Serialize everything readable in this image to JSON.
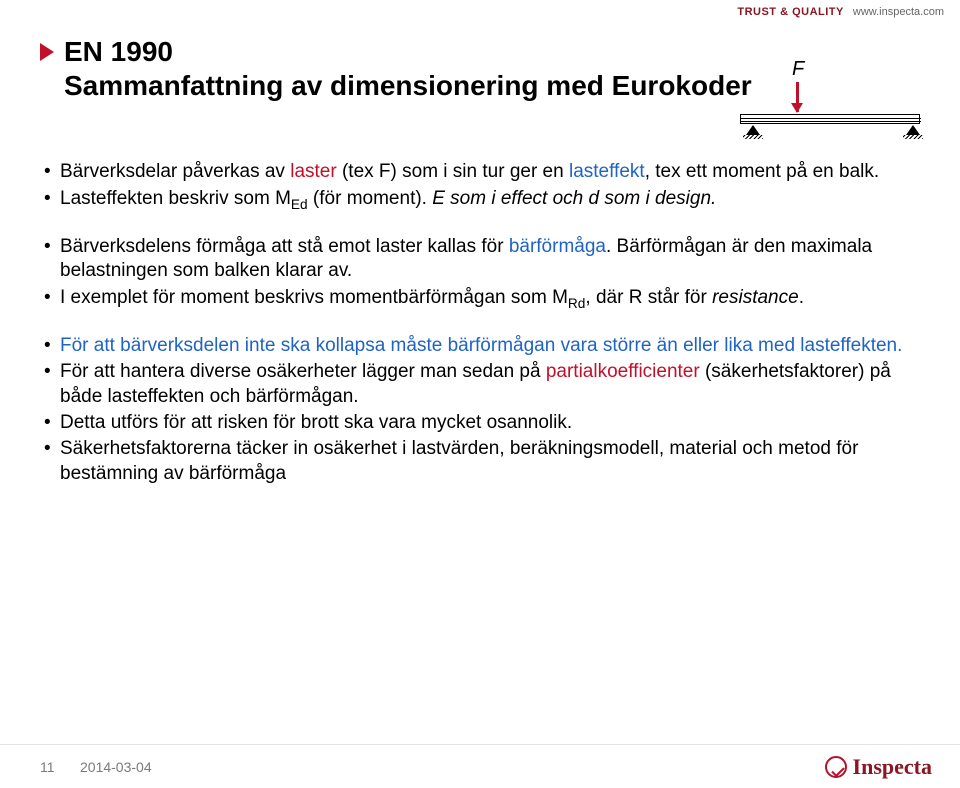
{
  "header": {
    "trust_quality": "TRUST & QUALITY",
    "url": "www.inspecta.com"
  },
  "title": {
    "line1": "EN 1990",
    "line2": "Sammanfattning av dimensionering med Eurokoder"
  },
  "diagram": {
    "force_label": "F",
    "force_arrow_color": "#c1102a",
    "beam_border_color": "#000000"
  },
  "bullets": {
    "b1_pre": "Bärverksdelar påverkas av ",
    "b1_red": "laster",
    "b1_mid": " (tex F) som i sin tur ger en ",
    "b1_blue": "lasteffekt",
    "b1_post": ", tex ett moment på en balk.",
    "b2_pre": "Lasteffekten beskriv som ",
    "b2_m": "M",
    "b2_sub": "Ed",
    "b2_mid": " (för moment). ",
    "b2_ital": "E som i effect och d som i design.",
    "b3_pre": "Bärverksdelens förmåga att stå emot laster kallas för ",
    "b3_blue": "bärförmåga",
    "b3_post": ". Bärförmågan är den maximala belastningen som balken klarar av.",
    "b4_pre": "I exemplet för moment beskrivs momentbärförmågan som ",
    "b4_m": "M",
    "b4_sub": "Rd",
    "b4_mid": ", där R står för ",
    "b4_ital": "resistance",
    "b4_post": ".",
    "b5": "För att bärverksdelen inte ska kollapsa måste bärförmågan vara större än eller lika med lasteffekten.",
    "b6_pre": "För att hantera diverse osäkerheter lägger man sedan på ",
    "b6_red": "partialkoefficienter",
    "b6_post": " (säkerhetsfaktorer) på både lasteffekten och bärförmågan.",
    "b7": "Detta utförs för att risken för brott ska vara mycket osannolik.",
    "b8": "Säkerhetsfaktorerna täcker in osäkerhet i lastvärden, beräkningsmodell, material och metod för bestämning av bärförmåga"
  },
  "footer": {
    "page": "11",
    "date": "2014-03-04",
    "logo_text": "Inspecta"
  },
  "colors": {
    "red": "#c1102a",
    "blue": "#1f63c4",
    "brand": "#8a1626",
    "text": "#000000",
    "muted": "#7a7a7a",
    "background": "#ffffff"
  },
  "typography": {
    "title_fontsize_pt": 21,
    "body_fontsize_pt": 14,
    "footer_fontsize_pt": 10
  }
}
